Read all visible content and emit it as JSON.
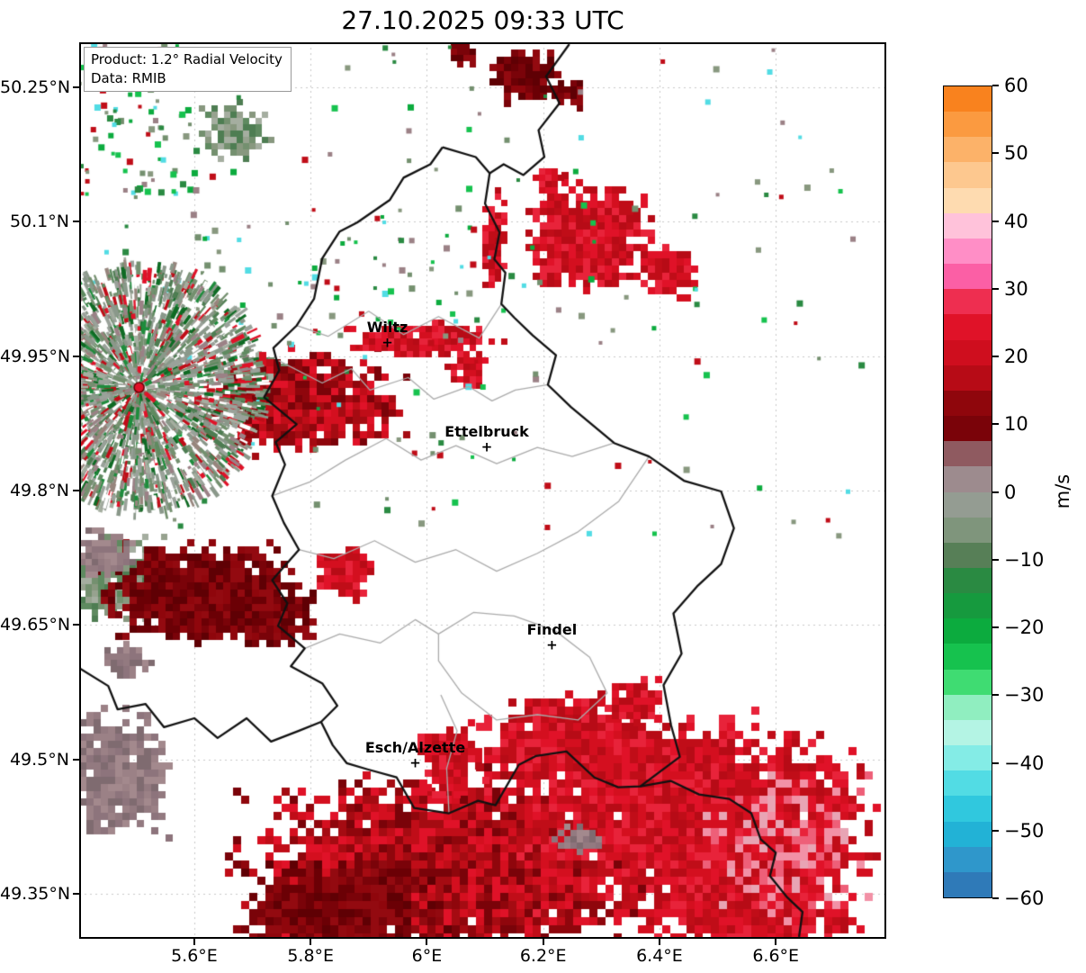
{
  "title": "27.10.2025 09:33 UTC",
  "info_box": {
    "product": "Product: 1.2° Radial Velocity",
    "data_source": "Data: RMIB"
  },
  "chart_data": {
    "type": "heatmap",
    "title": "27.10.2025 09:33 UTC",
    "product": "1.2° Radial Velocity",
    "data_source": "RMIB",
    "units": "m/s",
    "xlim": [
      5.402,
      6.79
    ],
    "ylim": [
      49.3,
      50.3
    ],
    "grid": true,
    "x_ticks": [
      {
        "value": 5.6,
        "label": "5.6°E"
      },
      {
        "value": 5.8,
        "label": "5.8°E"
      },
      {
        "value": 6.0,
        "label": "6°E"
      },
      {
        "value": 6.2,
        "label": "6.2°E"
      },
      {
        "value": 6.4,
        "label": "6.4°E"
      },
      {
        "value": 6.6,
        "label": "6.6°E"
      }
    ],
    "y_ticks": [
      {
        "value": 50.25,
        "label": "50.25°N"
      },
      {
        "value": 50.1,
        "label": "50.1°N"
      },
      {
        "value": 49.95,
        "label": "49.95°N"
      },
      {
        "value": 49.8,
        "label": "49.8°N"
      },
      {
        "value": 49.65,
        "label": "49.65°N"
      },
      {
        "value": 49.5,
        "label": "49.5°N"
      },
      {
        "value": 49.35,
        "label": "49.35°N"
      }
    ],
    "colorbar": {
      "min": -60,
      "max": 60,
      "label": "m/s",
      "ticks": [
        {
          "value": 60,
          "label": "60"
        },
        {
          "value": 50,
          "label": "50"
        },
        {
          "value": 40,
          "label": "40"
        },
        {
          "value": 30,
          "label": "30"
        },
        {
          "value": 20,
          "label": "20"
        },
        {
          "value": 10,
          "label": "10"
        },
        {
          "value": 0,
          "label": "0"
        },
        {
          "value": -10,
          "label": "−10"
        },
        {
          "value": -20,
          "label": "−20"
        },
        {
          "value": -30,
          "label": "−30"
        },
        {
          "value": -40,
          "label": "−40"
        },
        {
          "value": -50,
          "label": "−50"
        },
        {
          "value": -60,
          "label": "−60"
        }
      ],
      "bands": [
        "#f9821e",
        "#fb9a40",
        "#fcb269",
        "#fdc88f",
        "#fedbb0",
        "#ffc2da",
        "#ff8ec6",
        "#fb5fa5",
        "#ee2e50",
        "#e01228",
        "#cf0e1e",
        "#b70b16",
        "#8f060c",
        "#7a0309",
        "#8f5a60",
        "#9d8b8e",
        "#949c92",
        "#7f957c",
        "#577f57",
        "#2a8a42",
        "#169a3e",
        "#0cab3e",
        "#16c24e",
        "#3fdc72",
        "#90eec0",
        "#b4f4e4",
        "#84ece6",
        "#52dce4",
        "#30c8de",
        "#22b2d6",
        "#2f97cb",
        "#2f7ab8"
      ]
    },
    "radar_site": {
      "lon": 5.505,
      "lat": 49.915
    },
    "cities": [
      {
        "name": "Wiltz",
        "lon": 5.932,
        "lat": 49.965
      },
      {
        "name": "Ettelbruck",
        "lon": 6.103,
        "lat": 49.848
      },
      {
        "name": "Findel",
        "lon": 6.215,
        "lat": 49.627
      },
      {
        "name": "Esch/Alzette",
        "lon": 5.98,
        "lat": 49.496
      }
    ],
    "palettes": {
      "red": [
        "#e01228",
        "#d40f1f",
        "#c00d18",
        "#e8233a",
        "#b70b16"
      ],
      "mixedred": [
        "#c00d18",
        "#a50b12",
        "#8f060c",
        "#d40f1f",
        "#e01228",
        "#7a0309"
      ],
      "darkred": [
        "#8f060c",
        "#7a0309",
        "#6b0005",
        "#930a10",
        "#5f0004"
      ],
      "pinkred": [
        "#e01228",
        "#ee5f78",
        "#f291a6",
        "#d40f1f",
        "#e8a4b4",
        "#c00d18"
      ],
      "mauve": [
        "#9b8186",
        "#8d747c",
        "#a3898d",
        "#7f6b70",
        "#937a80"
      ],
      "graygreen": [
        "#88987f",
        "#74906f",
        "#97a28f",
        "#5f8a60",
        "#a5aea0",
        "#4e7d52"
      ],
      "specks": [
        "#2a8a42",
        "#0cab3e",
        "#88987f",
        "#c00d18",
        "#52dce4",
        "#9b8186",
        "#74906f",
        "#16c24e"
      ]
    },
    "velocity_regions": [
      {
        "c": [
          5.47,
          49.7
        ],
        "r": [
          0.075,
          0.045
        ],
        "n": 380,
        "p": "graygreen",
        "s": 7
      },
      {
        "c": [
          5.62,
          49.685
        ],
        "r": [
          0.15,
          0.05
        ],
        "n": 1000,
        "p": "darkred",
        "s": 8
      },
      {
        "c": [
          5.74,
          49.66
        ],
        "r": [
          0.06,
          0.033
        ],
        "n": 220,
        "p": "darkred",
        "s": 8
      },
      {
        "c": [
          5.86,
          49.705
        ],
        "r": [
          0.042,
          0.026
        ],
        "n": 190,
        "p": "red",
        "s": 8
      },
      {
        "c": [
          5.7,
          49.915
        ],
        "r": [
          0.06,
          0.04
        ],
        "n": 220,
        "p": "graygreen",
        "s": 7
      },
      {
        "c": [
          5.79,
          49.9
        ],
        "r": [
          0.15,
          0.05
        ],
        "n": 1050,
        "p": "mixedred",
        "s": 8
      },
      {
        "c": [
          5.99,
          49.968
        ],
        "r": [
          0.12,
          0.016
        ],
        "n": 260,
        "p": "red",
        "s": 7
      },
      {
        "c": [
          6.07,
          49.935
        ],
        "r": [
          0.03,
          0.02
        ],
        "n": 80,
        "p": "red",
        "s": 7
      },
      {
        "c": [
          6.28,
          50.08
        ],
        "r": [
          0.1,
          0.055
        ],
        "n": 680,
        "p": "red",
        "s": 8
      },
      {
        "c": [
          6.115,
          50.08
        ],
        "r": [
          0.018,
          0.05
        ],
        "n": 130,
        "p": "red",
        "s": 7
      },
      {
        "c": [
          6.42,
          50.045
        ],
        "r": [
          0.05,
          0.028
        ],
        "n": 150,
        "p": "red",
        "s": 8
      },
      {
        "c": [
          6.17,
          50.262
        ],
        "r": [
          0.05,
          0.026
        ],
        "n": 190,
        "p": "darkred",
        "s": 8
      },
      {
        "c": [
          6.245,
          50.243
        ],
        "r": [
          0.025,
          0.015
        ],
        "n": 60,
        "p": "darkred",
        "s": 7
      },
      {
        "c": [
          6.06,
          50.287
        ],
        "r": [
          0.02,
          0.012
        ],
        "n": 30,
        "p": "darkred",
        "s": 7
      },
      {
        "c": [
          6.21,
          50.147
        ],
        "r": [
          0.022,
          0.014
        ],
        "n": 45,
        "p": "red",
        "s": 7
      },
      {
        "c": [
          5.67,
          50.2
        ],
        "r": [
          0.05,
          0.03
        ],
        "n": 130,
        "p": "graygreen",
        "s": 7
      },
      {
        "c": [
          5.46,
          49.48
        ],
        "r": [
          0.09,
          0.065
        ],
        "n": 500,
        "p": "mauve",
        "s": 8
      },
      {
        "c": [
          5.44,
          49.73
        ],
        "r": [
          0.055,
          0.026
        ],
        "n": 120,
        "p": "mauve",
        "s": 7
      },
      {
        "c": [
          5.485,
          49.61
        ],
        "r": [
          0.035,
          0.02
        ],
        "n": 60,
        "p": "mauve",
        "s": 7
      },
      {
        "c": [
          6.05,
          49.38
        ],
        "r": [
          0.33,
          0.095
        ],
        "n": 2600,
        "p": "mixedred",
        "s": 9
      },
      {
        "c": [
          6.45,
          49.44
        ],
        "r": [
          0.28,
          0.095
        ],
        "n": 2100,
        "p": "red",
        "s": 9
      },
      {
        "c": [
          6.55,
          49.33
        ],
        "r": [
          0.18,
          0.05
        ],
        "n": 500,
        "p": "red",
        "s": 9
      },
      {
        "c": [
          6.25,
          49.52
        ],
        "r": [
          0.14,
          0.05
        ],
        "n": 650,
        "p": "red",
        "s": 9
      },
      {
        "c": [
          6.36,
          49.565
        ],
        "r": [
          0.045,
          0.022
        ],
        "n": 110,
        "p": "red",
        "s": 8
      },
      {
        "c": [
          6.04,
          49.5
        ],
        "r": [
          0.05,
          0.035
        ],
        "n": 170,
        "p": "red",
        "s": 8
      },
      {
        "c": [
          5.86,
          49.33
        ],
        "r": [
          0.17,
          0.05
        ],
        "n": 700,
        "p": "darkred",
        "s": 9
      },
      {
        "c": [
          6.62,
          49.41
        ],
        "r": [
          0.13,
          0.08
        ],
        "n": 420,
        "p": "pinkred",
        "s": 9
      },
      {
        "c": [
          6.26,
          49.41
        ],
        "r": [
          0.05,
          0.012
        ],
        "n": 55,
        "p": "mauve",
        "s": 7
      }
    ],
    "speck_fields": [
      {
        "area": [
          5.4,
          49.75,
          6.75,
          50.3
        ],
        "n": 170
      },
      {
        "area": [
          5.4,
          50.12,
          5.6,
          50.3
        ],
        "n": 80
      },
      {
        "area": [
          5.55,
          49.95,
          6.1,
          50.12
        ],
        "n": 60
      }
    ],
    "radar_speckle": {
      "radius_px": 135,
      "streaks": 3200,
      "colors": [
        "#9aa29a",
        "#9aa29a",
        "#8a988a",
        "#8a988a",
        "#8a988a",
        "#74906f",
        "#74906f",
        "#a5aea0",
        "#5f8a60",
        "#4e7d52",
        "#97857d",
        "#9b8186",
        "#1e8c3c",
        "#0f6b24",
        "#c00d18",
        "#e01228",
        "#ffffff",
        "#ffffff"
      ]
    },
    "borders": {
      "luxembourg": [
        [
          6.027,
          50.183
        ],
        [
          6.084,
          50.172
        ],
        [
          6.108,
          50.154
        ],
        [
          6.1,
          50.12
        ],
        [
          6.125,
          50.088
        ],
        [
          6.116,
          50.058
        ],
        [
          6.135,
          50.043
        ],
        [
          6.128,
          50.008
        ],
        [
          6.15,
          49.993
        ],
        [
          6.182,
          49.973
        ],
        [
          6.222,
          49.951
        ],
        [
          6.208,
          49.918
        ],
        [
          6.248,
          49.893
        ],
        [
          6.322,
          49.853
        ],
        [
          6.382,
          49.838
        ],
        [
          6.442,
          49.811
        ],
        [
          6.506,
          49.799
        ],
        [
          6.528,
          49.758
        ],
        [
          6.506,
          49.718
        ],
        [
          6.466,
          49.694
        ],
        [
          6.424,
          49.663
        ],
        [
          6.438,
          49.618
        ],
        [
          6.407,
          49.583
        ],
        [
          6.42,
          49.538
        ],
        [
          6.435,
          49.503
        ],
        [
          6.367,
          49.47
        ],
        [
          6.329,
          49.469
        ],
        [
          6.288,
          49.48
        ],
        [
          6.24,
          49.509
        ],
        [
          6.188,
          49.504
        ],
        [
          6.158,
          49.494
        ],
        [
          6.118,
          49.449
        ],
        [
          6.088,
          49.454
        ],
        [
          6.038,
          49.44
        ],
        [
          5.978,
          49.446
        ],
        [
          5.948,
          49.48
        ],
        [
          5.898,
          49.489
        ],
        [
          5.862,
          49.496
        ],
        [
          5.838,
          49.516
        ],
        [
          5.818,
          49.542
        ],
        [
          5.846,
          49.56
        ],
        [
          5.82,
          49.585
        ],
        [
          5.766,
          49.604
        ],
        [
          5.79,
          49.624
        ],
        [
          5.744,
          49.649
        ],
        [
          5.76,
          49.674
        ],
        [
          5.734,
          49.7
        ],
        [
          5.78,
          49.734
        ],
        [
          5.754,
          49.764
        ],
        [
          5.734,
          49.794
        ],
        [
          5.756,
          49.829
        ],
        [
          5.74,
          49.854
        ],
        [
          5.776,
          49.874
        ],
        [
          5.72,
          49.904
        ],
        [
          5.746,
          49.934
        ],
        [
          5.736,
          49.959
        ],
        [
          5.776,
          49.984
        ],
        [
          5.806,
          50.014
        ],
        [
          5.82,
          50.059
        ],
        [
          5.85,
          50.089
        ],
        [
          5.88,
          50.099
        ],
        [
          5.936,
          50.124
        ],
        [
          5.96,
          50.149
        ],
        [
          6.006,
          50.164
        ],
        [
          6.027,
          50.183
        ]
      ],
      "be_de": [
        [
          6.245,
          50.298
        ],
        [
          6.205,
          50.262
        ],
        [
          6.228,
          50.232
        ],
        [
          6.192,
          50.202
        ],
        [
          6.202,
          50.172
        ],
        [
          6.166,
          50.152
        ],
        [
          6.132,
          50.164
        ],
        [
          6.108,
          50.154
        ]
      ],
      "be_fr": [
        [
          5.402,
          49.602
        ],
        [
          5.452,
          49.582
        ],
        [
          5.468,
          49.556
        ],
        [
          5.516,
          49.562
        ],
        [
          5.548,
          49.536
        ],
        [
          5.6,
          49.546
        ],
        [
          5.64,
          49.524
        ],
        [
          5.69,
          49.546
        ],
        [
          5.732,
          49.52
        ],
        [
          5.78,
          49.532
        ],
        [
          5.818,
          49.542
        ]
      ],
      "fr_de": [
        [
          6.367,
          49.47
        ],
        [
          6.42,
          49.476
        ],
        [
          6.468,
          49.461
        ],
        [
          6.52,
          49.456
        ],
        [
          6.558,
          49.44
        ],
        [
          6.574,
          49.411
        ],
        [
          6.6,
          49.396
        ],
        [
          6.59,
          49.37
        ],
        [
          6.62,
          49.346
        ],
        [
          6.646,
          49.33
        ],
        [
          6.64,
          49.302
        ]
      ],
      "districts": [
        [
          [
            5.745,
            49.945
          ],
          [
            5.82,
            49.92
          ],
          [
            5.87,
            49.936
          ],
          [
            5.902,
            49.912
          ],
          [
            5.968,
            49.926
          ],
          [
            6.012,
            49.902
          ],
          [
            6.072,
            49.916
          ],
          [
            6.112,
            49.9
          ],
          [
            6.152,
            49.912
          ],
          [
            6.208,
            49.918
          ]
        ],
        [
          [
            5.776,
            49.984
          ],
          [
            5.83,
            49.972
          ],
          [
            5.9,
            50.0
          ],
          [
            5.96,
            49.974
          ],
          [
            6.02,
            49.994
          ],
          [
            6.09,
            49.97
          ],
          [
            6.128,
            50.008
          ]
        ],
        [
          [
            5.734,
            49.794
          ],
          [
            5.8,
            49.81
          ],
          [
            5.86,
            49.834
          ],
          [
            5.93,
            49.858
          ],
          [
            5.99,
            49.834
          ],
          [
            6.05,
            49.85
          ],
          [
            6.12,
            49.83
          ],
          [
            6.19,
            49.848
          ],
          [
            6.25,
            49.838
          ],
          [
            6.322,
            49.853
          ]
        ],
        [
          [
            5.78,
            49.734
          ],
          [
            5.84,
            49.724
          ],
          [
            5.91,
            49.744
          ],
          [
            5.98,
            49.72
          ],
          [
            6.05,
            49.734
          ],
          [
            6.12,
            49.71
          ],
          [
            6.19,
            49.73
          ],
          [
            6.26,
            49.754
          ],
          [
            6.33,
            49.788
          ],
          [
            6.382,
            49.838
          ]
        ],
        [
          [
            6.02,
            49.64
          ],
          [
            6.08,
            49.664
          ],
          [
            6.15,
            49.66
          ],
          [
            6.22,
            49.644
          ],
          [
            6.28,
            49.614
          ],
          [
            6.31,
            49.574
          ],
          [
            6.26,
            49.544
          ],
          [
            6.19,
            49.55
          ],
          [
            6.12,
            49.544
          ],
          [
            6.06,
            49.574
          ],
          [
            6.02,
            49.61
          ],
          [
            6.02,
            49.64
          ]
        ],
        [
          [
            6.038,
            49.44
          ],
          [
            6.034,
            49.49
          ],
          [
            6.052,
            49.532
          ],
          [
            6.024,
            49.572
          ]
        ],
        [
          [
            5.79,
            49.624
          ],
          [
            5.85,
            49.64
          ],
          [
            5.92,
            49.63
          ],
          [
            5.98,
            49.656
          ],
          [
            6.02,
            49.64
          ]
        ]
      ]
    }
  }
}
